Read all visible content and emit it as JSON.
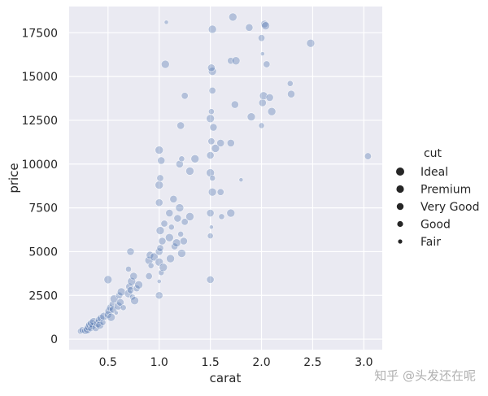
{
  "chart_data": {
    "type": "scatter",
    "xlabel": "carat",
    "ylabel": "price",
    "xlim": [
      0.12,
      3.18
    ],
    "ylim": [
      -600,
      19000
    ],
    "x_ticks": [
      0.5,
      1.0,
      1.5,
      2.0,
      2.5,
      3.0
    ],
    "x_tick_labels": [
      "0.5",
      "1.0",
      "1.5",
      "2.0",
      "2.5",
      "3.0"
    ],
    "y_ticks": [
      0,
      2500,
      5000,
      7500,
      10000,
      12500,
      15000,
      17500
    ],
    "y_tick_labels": [
      "0",
      "2500",
      "5000",
      "7500",
      "10000",
      "12500",
      "15000",
      "17500"
    ],
    "grid": true,
    "point_color": "#4c72b0",
    "point_opacity": 0.35,
    "background_color": "#eaeaf2",
    "legend": {
      "title": "cut",
      "placement": "right",
      "entries": [
        "Ideal",
        "Premium",
        "Very Good",
        "Good",
        "Fair"
      ],
      "sizes": [
        5,
        4.6,
        4.2,
        3.6,
        2.6
      ]
    },
    "points": [
      [
        0.23,
        450,
        "Good"
      ],
      [
        0.25,
        520,
        "Very Good"
      ],
      [
        0.28,
        480,
        "Premium"
      ],
      [
        0.3,
        550,
        "Ideal"
      ],
      [
        0.31,
        700,
        "Ideal"
      ],
      [
        0.32,
        820,
        "Premium"
      ],
      [
        0.33,
        600,
        "Good"
      ],
      [
        0.34,
        900,
        "Ideal"
      ],
      [
        0.35,
        750,
        "Very Good"
      ],
      [
        0.36,
        1000,
        "Ideal"
      ],
      [
        0.38,
        650,
        "Premium"
      ],
      [
        0.4,
        900,
        "Ideal"
      ],
      [
        0.41,
        1100,
        "Very Good"
      ],
      [
        0.42,
        800,
        "Ideal"
      ],
      [
        0.43,
        1200,
        "Premium"
      ],
      [
        0.45,
        950,
        "Good"
      ],
      [
        0.46,
        1300,
        "Ideal"
      ],
      [
        0.5,
        1400,
        "Premium"
      ],
      [
        0.51,
        1600,
        "Ideal"
      ],
      [
        0.52,
        1800,
        "Very Good"
      ],
      [
        0.53,
        1250,
        "Ideal"
      ],
      [
        0.54,
        2000,
        "Good"
      ],
      [
        0.55,
        1700,
        "Premium"
      ],
      [
        0.56,
        2300,
        "Ideal"
      ],
      [
        0.58,
        1500,
        "Fair"
      ],
      [
        0.6,
        1900,
        "Ideal"
      ],
      [
        0.61,
        2500,
        "Very Good"
      ],
      [
        0.62,
        2100,
        "Premium"
      ],
      [
        0.63,
        2700,
        "Ideal"
      ],
      [
        0.65,
        1800,
        "Good"
      ],
      [
        0.7,
        2600,
        "Ideal"
      ],
      [
        0.71,
        3000,
        "Premium"
      ],
      [
        0.72,
        2800,
        "Very Good"
      ],
      [
        0.73,
        3300,
        "Ideal"
      ],
      [
        0.74,
        2400,
        "Good"
      ],
      [
        0.75,
        3600,
        "Premium"
      ],
      [
        0.76,
        2200,
        "Ideal"
      ],
      [
        0.78,
        2900,
        "Very Good"
      ],
      [
        0.8,
        3100,
        "Ideal"
      ],
      [
        0.7,
        4000,
        "Good"
      ],
      [
        0.72,
        5000,
        "Premium"
      ],
      [
        0.5,
        3400,
        "Ideal"
      ],
      [
        0.9,
        4500,
        "Ideal"
      ],
      [
        0.91,
        4800,
        "Premium"
      ],
      [
        0.9,
        3600,
        "Very Good"
      ],
      [
        0.92,
        4200,
        "Good"
      ],
      [
        0.95,
        4700,
        "Ideal"
      ],
      [
        1.0,
        5000,
        "Premium"
      ],
      [
        1.0,
        4400,
        "Ideal"
      ],
      [
        1.01,
        5200,
        "Very Good"
      ],
      [
        1.01,
        6200,
        "Ideal"
      ],
      [
        1.02,
        3800,
        "Good"
      ],
      [
        1.03,
        5600,
        "Premium"
      ],
      [
        1.04,
        4100,
        "Ideal"
      ],
      [
        1.05,
        6600,
        "Very Good"
      ],
      [
        1.0,
        3300,
        "Fair"
      ],
      [
        1.1,
        5800,
        "Ideal"
      ],
      [
        1.1,
        7200,
        "Premium"
      ],
      [
        1.11,
        4600,
        "Ideal"
      ],
      [
        1.12,
        6400,
        "Good"
      ],
      [
        1.14,
        8000,
        "Premium"
      ],
      [
        1.15,
        5300,
        "Very Good"
      ],
      [
        1.17,
        5500,
        "Ideal"
      ],
      [
        1.18,
        6900,
        "Premium"
      ],
      [
        1.2,
        7500,
        "Ideal"
      ],
      [
        1.21,
        6000,
        "Good"
      ],
      [
        1.22,
        4900,
        "Ideal"
      ],
      [
        1.24,
        5600,
        "Premium"
      ],
      [
        1.25,
        6700,
        "Very Good"
      ],
      [
        1.3,
        7000,
        "Ideal"
      ],
      [
        1.0,
        7800,
        "Premium"
      ],
      [
        1.0,
        8800,
        "Ideal"
      ],
      [
        1.01,
        9200,
        "Very Good"
      ],
      [
        1.02,
        10200,
        "Premium"
      ],
      [
        1.0,
        10800,
        "Ideal"
      ],
      [
        1.2,
        10000,
        "Premium"
      ],
      [
        1.22,
        10300,
        "Good"
      ],
      [
        1.3,
        9600,
        "Ideal"
      ],
      [
        1.0,
        2500,
        "Premium"
      ],
      [
        1.06,
        15700,
        "Ideal"
      ],
      [
        1.07,
        18100,
        "Fair"
      ],
      [
        1.25,
        13900,
        "Very Good"
      ],
      [
        1.21,
        12200,
        "Premium"
      ],
      [
        1.35,
        10300,
        "Ideal"
      ],
      [
        1.5,
        9500,
        "Ideal"
      ],
      [
        1.5,
        10500,
        "Premium"
      ],
      [
        1.51,
        11300,
        "Very Good"
      ],
      [
        1.52,
        9200,
        "Good"
      ],
      [
        1.52,
        8400,
        "Ideal"
      ],
      [
        1.5,
        7200,
        "Premium"
      ],
      [
        1.51,
        6400,
        "Fair"
      ],
      [
        1.5,
        5900,
        "Good"
      ],
      [
        1.53,
        12100,
        "Premium"
      ],
      [
        1.5,
        12600,
        "Ideal"
      ],
      [
        1.52,
        14200,
        "Very Good"
      ],
      [
        1.52,
        15300,
        "Ideal"
      ],
      [
        1.51,
        15500,
        "Premium"
      ],
      [
        1.52,
        17700,
        "Ideal"
      ],
      [
        1.5,
        3400,
        "Premium"
      ],
      [
        1.51,
        13000,
        "Good"
      ],
      [
        1.55,
        10900,
        "Ideal"
      ],
      [
        1.6,
        11200,
        "Premium"
      ],
      [
        1.6,
        8400,
        "Very Good"
      ],
      [
        1.61,
        7000,
        "Good"
      ],
      [
        1.7,
        7200,
        "Ideal"
      ],
      [
        1.7,
        11200,
        "Premium"
      ],
      [
        1.7,
        15900,
        "Very Good"
      ],
      [
        1.72,
        18400,
        "Ideal"
      ],
      [
        1.74,
        13400,
        "Premium"
      ],
      [
        1.75,
        15900,
        "Ideal"
      ],
      [
        1.8,
        9100,
        "Fair"
      ],
      [
        1.88,
        17800,
        "Premium"
      ],
      [
        1.9,
        12700,
        "Ideal"
      ],
      [
        2.0,
        12200,
        "Good"
      ],
      [
        2.01,
        13500,
        "Premium"
      ],
      [
        2.02,
        13900,
        "Ideal"
      ],
      [
        2.01,
        16300,
        "Fair"
      ],
      [
        2.0,
        17200,
        "Very Good"
      ],
      [
        2.03,
        18000,
        "Premium"
      ],
      [
        2.04,
        17900,
        "Ideal"
      ],
      [
        2.05,
        15700,
        "Very Good"
      ],
      [
        2.08,
        13800,
        "Premium"
      ],
      [
        2.1,
        13000,
        "Ideal"
      ],
      [
        2.28,
        14600,
        "Good"
      ],
      [
        2.29,
        14000,
        "Premium"
      ],
      [
        2.48,
        16900,
        "Ideal"
      ],
      [
        3.04,
        10450,
        "Very Good"
      ]
    ]
  },
  "watermark": "知乎 @头发还在呢"
}
